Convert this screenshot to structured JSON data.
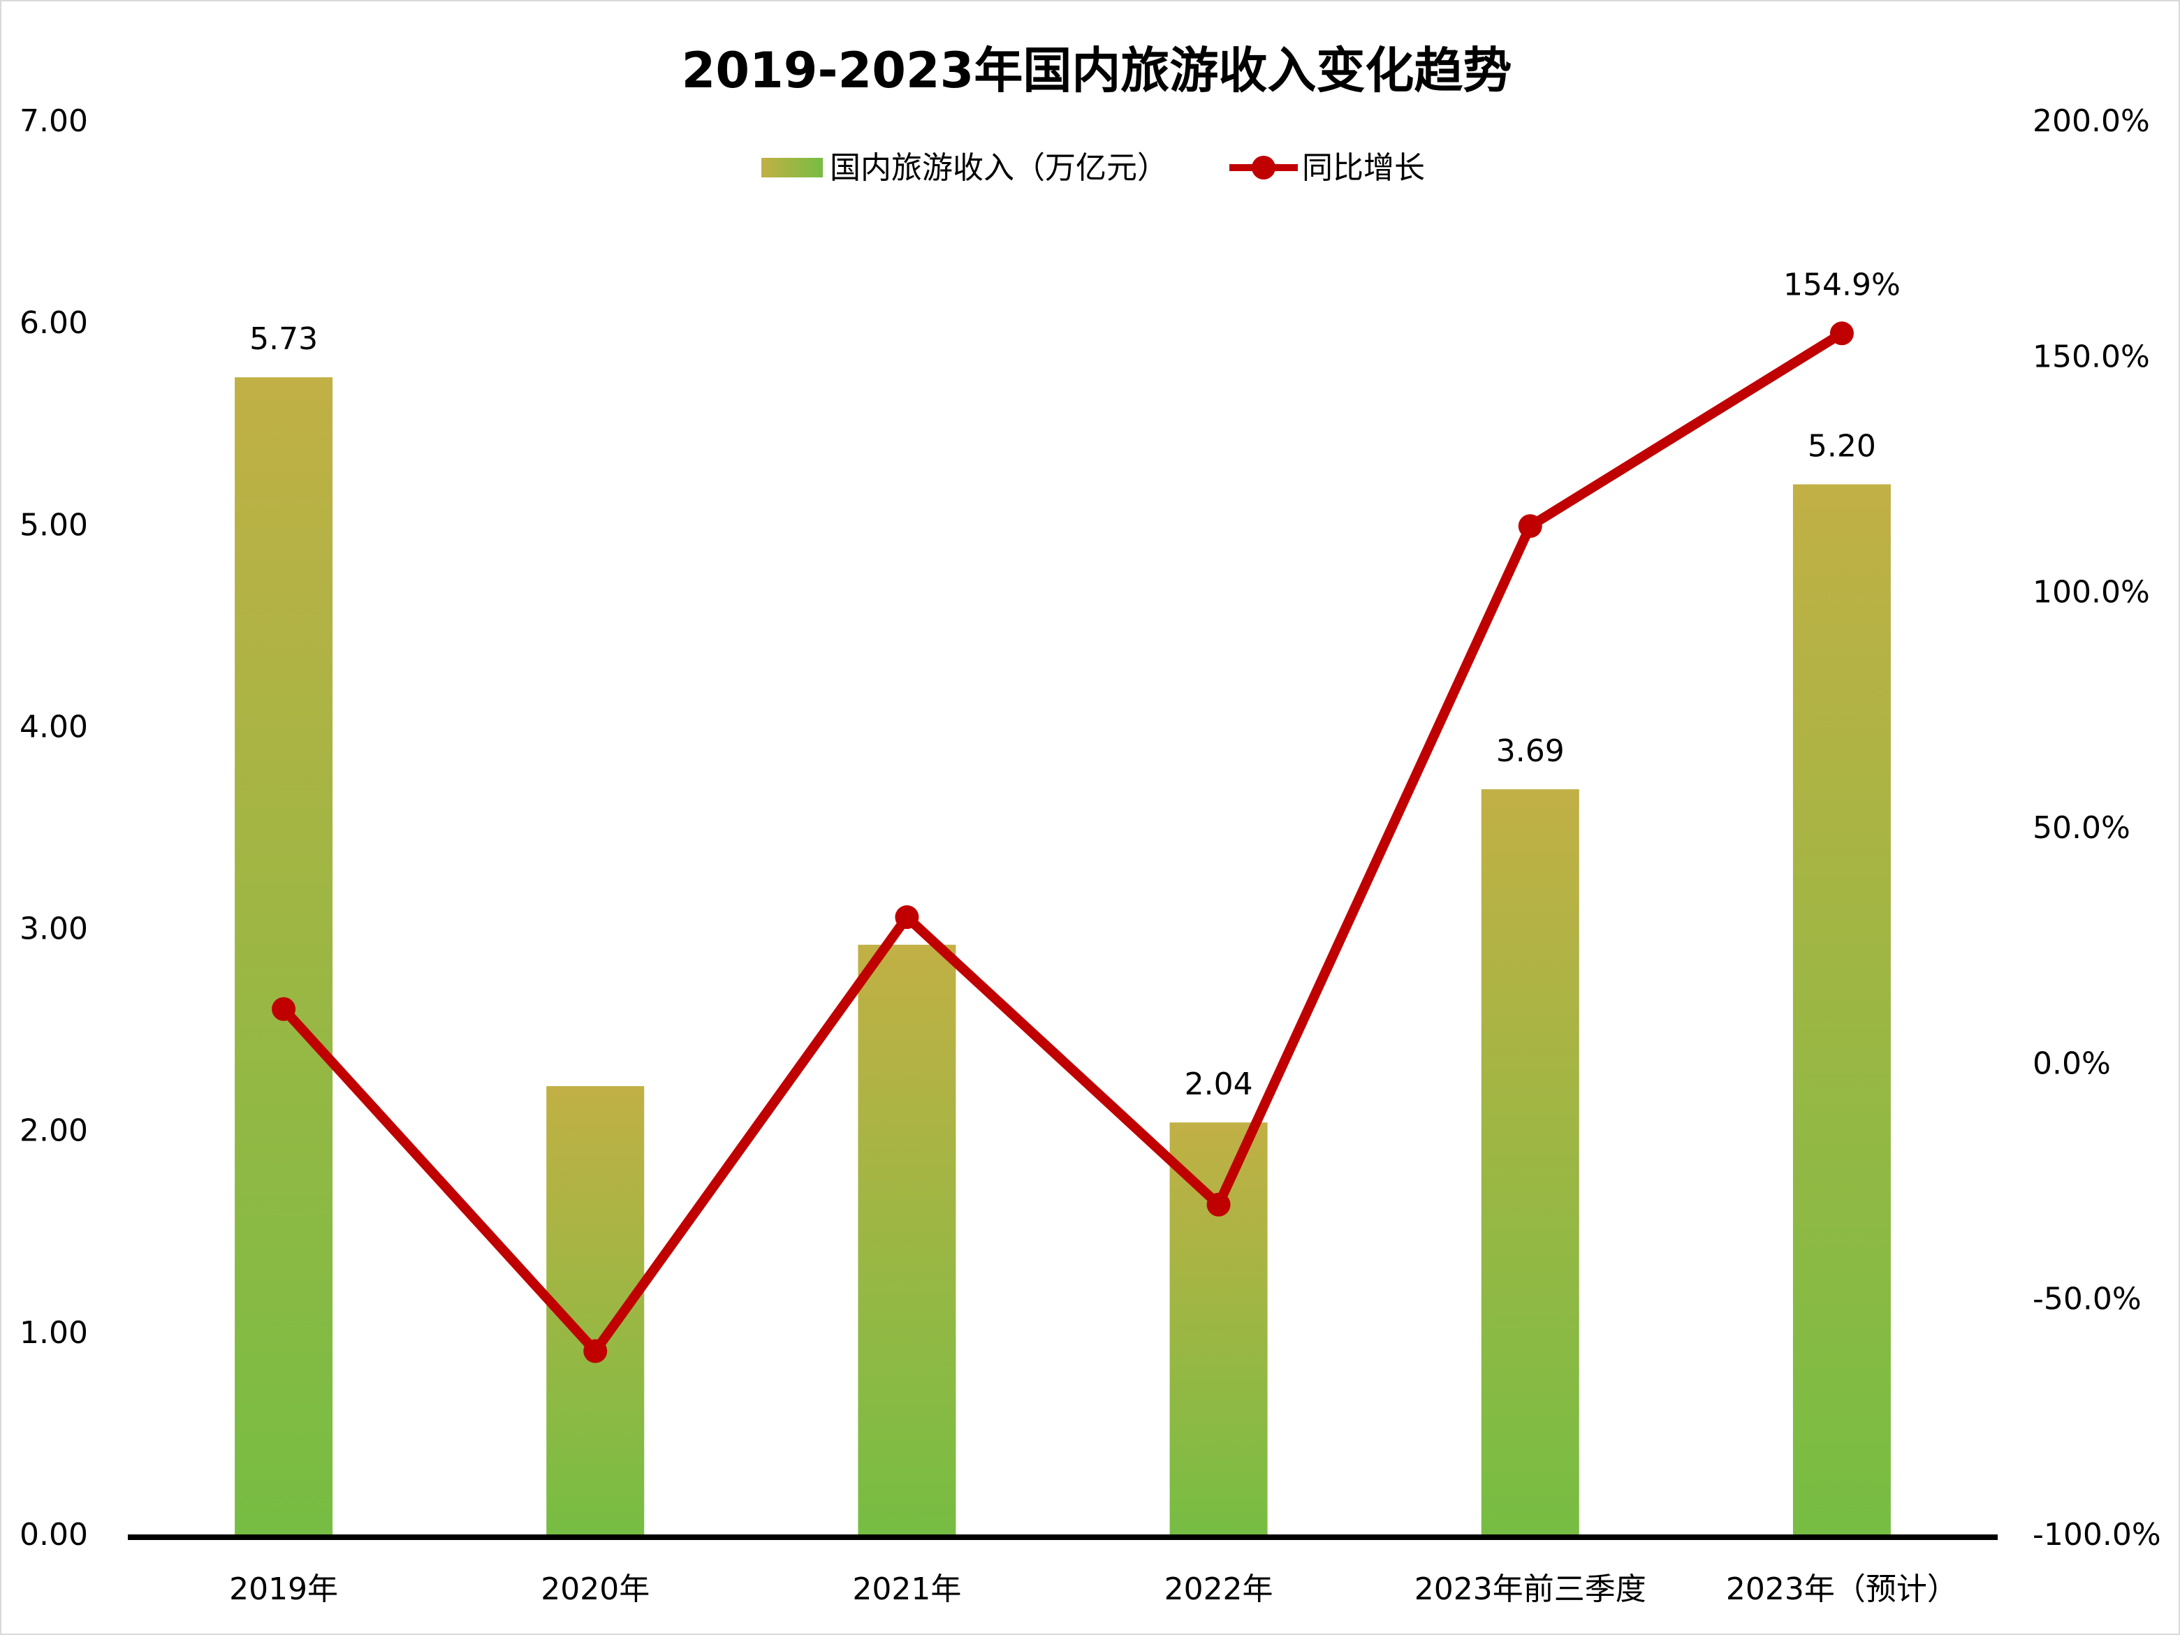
{
  "chart_data": {
    "type": "bar+line",
    "title": "2019-2023年国内旅游收入变化趋势",
    "categories": [
      "2019年",
      "2020年",
      "2021年",
      "2022年",
      "2023年前三季度",
      "2023年（预计）"
    ],
    "series": [
      {
        "name": "国内旅游收入（万亿元）",
        "type": "bar",
        "axis": "left",
        "values": [
          5.73,
          2.22,
          2.92,
          2.04,
          3.69,
          5.2
        ],
        "data_labels": [
          "5.73",
          "",
          "",
          "2.04",
          "3.69",
          "5.20"
        ],
        "color_top": "#c1b045",
        "color_bottom": "#77bd43"
      },
      {
        "name": "同比增长",
        "type": "line",
        "axis": "right",
        "values": [
          11.5,
          -61.1,
          31.0,
          -30.0,
          114.0,
          154.9
        ],
        "data_labels": [
          "",
          "",
          "",
          "",
          "",
          "154.9%"
        ],
        "color": "#c00000"
      }
    ],
    "left_axis": {
      "ylim": [
        0,
        7
      ],
      "ticks": [
        "0.00",
        "1.00",
        "2.00",
        "3.00",
        "4.00",
        "5.00",
        "6.00",
        "7.00"
      ]
    },
    "right_axis": {
      "ylim": [
        -100,
        200
      ],
      "ticks": [
        "-100.0%",
        "-50.0%",
        "0.0%",
        "50.0%",
        "100.0%",
        "150.0%",
        "200.0%"
      ]
    },
    "legend_position": "top",
    "grid": false
  }
}
